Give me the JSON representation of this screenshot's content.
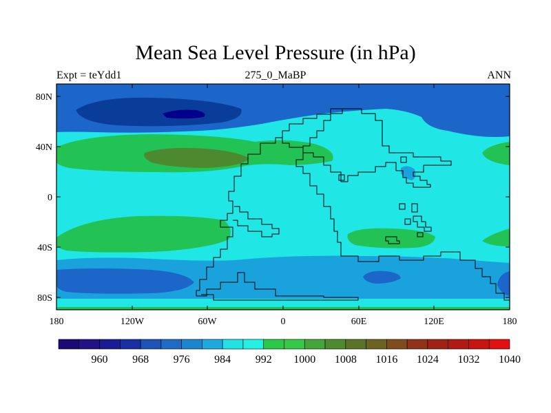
{
  "title": "Mean Sea Level Pressure (in hPa)",
  "left_label": "Expt = teYdd1",
  "center_label": "275_0_MaBP",
  "right_label": "ANN",
  "lon_ticks": [
    "180",
    "120W",
    "60W",
    "0",
    "60E",
    "120E",
    "180"
  ],
  "lat_ticks": [
    "80N",
    "40N",
    "0",
    "40S",
    "80S"
  ],
  "colorbar": {
    "labels": [
      "960",
      "968",
      "976",
      "984",
      "992",
      "1000",
      "1008",
      "1016",
      "1024",
      "1032",
      "1040"
    ],
    "colors": [
      "#1c0a74",
      "#231286",
      "#1a1c95",
      "#1830a2",
      "#1b54b6",
      "#1f6bc5",
      "#1a86d0",
      "#1ea8dc",
      "#21e3e3",
      "#21f0e3",
      "#2ac94a",
      "#33c848",
      "#43a53a",
      "#4e8a2f",
      "#5a7327",
      "#6b6322",
      "#7e4d1c",
      "#8f3418",
      "#a02215",
      "#b01a12",
      "#c8150f",
      "#e01010"
    ]
  },
  "map_colors": {
    "c1": "#00008a",
    "c2": "#0a3c9a",
    "c3": "#1b66c8",
    "c4": "#1aa2dc",
    "c5": "#20e6e6",
    "c6": "#22c354",
    "c7": "#4d8a2f",
    "coast": "#000000"
  }
}
